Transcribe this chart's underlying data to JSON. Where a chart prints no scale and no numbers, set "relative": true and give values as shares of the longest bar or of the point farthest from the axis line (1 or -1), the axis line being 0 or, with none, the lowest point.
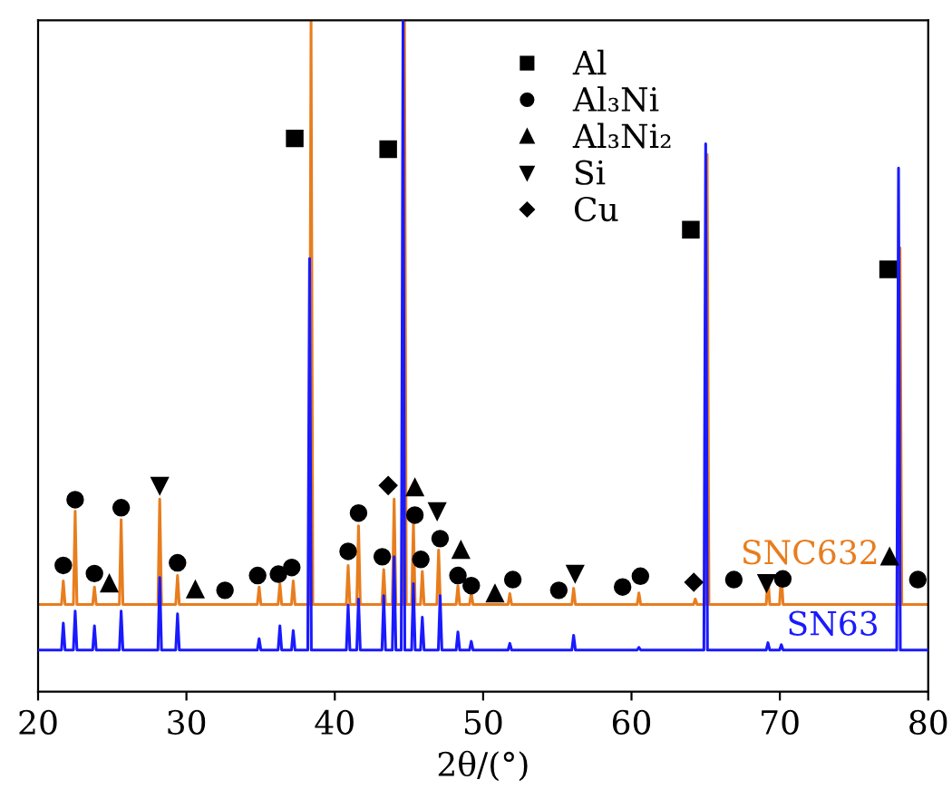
{
  "chart_data": {
    "type": "line",
    "relative": true,
    "xlabel": "2θ/(°)",
    "xlim": [
      20,
      80
    ],
    "xticks": [
      20,
      30,
      40,
      50,
      60,
      70,
      80
    ],
    "grid": false,
    "legend": "top",
    "tick_labels": "x",
    "series": [
      {
        "name": "SNC632",
        "color": "#e87d1e",
        "marker": "none",
        "line_style": "solid",
        "x": [
          20,
          21.58,
          21.7,
          21.82,
          22.38,
          22.5,
          22.62,
          23.68,
          23.8,
          23.92,
          25.48,
          25.6,
          25.72,
          28.08,
          28.2,
          28.32,
          29.28,
          29.4,
          29.52,
          34.78,
          34.9,
          35.02,
          36.18,
          36.3,
          36.42,
          37.08,
          37.2,
          37.32,
          38.28,
          38.4,
          38.52,
          40.78,
          40.9,
          41.02,
          41.48,
          41.6,
          41.72,
          43.18,
          43.3,
          43.42,
          43.88,
          44.0,
          44.12,
          44.58,
          44.7,
          44.82,
          45.18,
          45.3,
          45.42,
          45.78,
          45.9,
          46.02,
          46.88,
          47.0,
          47.12,
          48.18,
          48.3,
          48.42,
          49.08,
          49.2,
          49.32,
          51.68,
          51.8,
          51.92,
          55.98,
          56.1,
          56.22,
          60.38,
          60.5,
          60.62,
          64.18,
          64.3,
          64.42,
          64.98,
          65.1,
          65.22,
          69.08,
          69.2,
          69.32,
          69.98,
          70.1,
          70.22,
          77.98,
          78.1,
          78.22,
          80
        ],
        "values": [
          0.13,
          0.13,
          0.165,
          0.13,
          0.13,
          0.269,
          0.13,
          0.13,
          0.156,
          0.13,
          0.13,
          0.256,
          0.13,
          0.13,
          0.287,
          0.13,
          0.13,
          0.173,
          0.13,
          0.13,
          0.156,
          0.13,
          0.13,
          0.161,
          0.13,
          0.13,
          0.165,
          0.13,
          0.13,
          1.0,
          0.13,
          0.13,
          0.188,
          0.13,
          0.13,
          0.247,
          0.13,
          0.13,
          0.182,
          0.13,
          0.13,
          0.287,
          0.13,
          0.13,
          1.0,
          0.13,
          0.13,
          0.251,
          0.13,
          0.13,
          0.179,
          0.13,
          0.13,
          0.211,
          0.13,
          0.13,
          0.158,
          0.13,
          0.13,
          0.147,
          0.13,
          0.13,
          0.146,
          0.13,
          0.13,
          0.154,
          0.13,
          0.13,
          0.147,
          0.13,
          0.13,
          0.138,
          0.13,
          0.13,
          0.8,
          0.13,
          0.13,
          0.171,
          0.13,
          0.13,
          0.174,
          0.13,
          0.13,
          0.661,
          0.13,
          0.13
        ]
      },
      {
        "name": "SN63",
        "color": "#1a1aff",
        "marker": "none",
        "line_style": "solid",
        "x": [
          20,
          21.58,
          21.7,
          21.82,
          22.38,
          22.5,
          22.62,
          23.68,
          23.8,
          23.92,
          25.48,
          25.6,
          25.72,
          28.08,
          28.2,
          28.32,
          29.28,
          29.4,
          29.52,
          34.78,
          34.9,
          35.02,
          36.18,
          36.3,
          36.42,
          37.08,
          37.2,
          37.32,
          38.18,
          38.3,
          38.42,
          40.78,
          40.9,
          41.02,
          41.48,
          41.6,
          41.72,
          43.18,
          43.3,
          43.42,
          43.88,
          44.0,
          44.12,
          44.48,
          44.6,
          44.72,
          45.18,
          45.3,
          45.42,
          45.78,
          45.9,
          46.02,
          46.98,
          47.1,
          47.22,
          48.18,
          48.3,
          48.42,
          49.08,
          49.2,
          49.32,
          51.68,
          51.8,
          51.92,
          55.98,
          56.1,
          56.22,
          60.38,
          60.5,
          60.62,
          64.88,
          65.0,
          65.12,
          69.08,
          69.2,
          69.32,
          69.98,
          70.1,
          70.22,
          77.88,
          78.0,
          78.12,
          80
        ],
        "values": [
          0.062,
          0.062,
          0.102,
          0.062,
          0.062,
          0.12,
          0.062,
          0.062,
          0.098,
          0.062,
          0.062,
          0.12,
          0.062,
          0.062,
          0.17,
          0.062,
          0.062,
          0.116,
          0.062,
          0.062,
          0.079,
          0.062,
          0.062,
          0.098,
          0.062,
          0.062,
          0.091,
          0.062,
          0.062,
          0.645,
          0.062,
          0.062,
          0.129,
          0.062,
          0.062,
          0.138,
          0.062,
          0.062,
          0.143,
          0.062,
          0.062,
          0.201,
          0.062,
          0.062,
          1.0,
          0.062,
          0.062,
          0.161,
          0.062,
          0.062,
          0.111,
          0.062,
          0.062,
          0.143,
          0.062,
          0.062,
          0.089,
          0.062,
          0.062,
          0.075,
          0.062,
          0.062,
          0.072,
          0.062,
          0.062,
          0.084,
          0.062,
          0.062,
          0.066,
          0.062,
          0.062,
          0.816,
          0.062,
          0.062,
          0.073,
          0.062,
          0.062,
          0.07,
          0.062,
          0.062,
          0.78,
          0.062,
          0.062
        ]
      },
      {
        "name": "Al",
        "type": "scatter",
        "color": "#000000",
        "marker": "square",
        "x": [
          37.3,
          43.6,
          64.0,
          77.3
        ],
        "values": [
          0.824,
          0.808,
          0.688,
          0.629
        ]
      },
      {
        "name": "Al₃Ni",
        "type": "scatter",
        "color": "#000000",
        "marker": "circle",
        "x": [
          21.7,
          22.5,
          23.8,
          25.6,
          29.4,
          32.6,
          34.8,
          36.2,
          37.1,
          40.9,
          41.6,
          43.2,
          45.4,
          45.8,
          47.1,
          48.3,
          49.2,
          52.0,
          55.1,
          59.4,
          60.6,
          66.9,
          70.2,
          79.3
        ],
        "values": [
          0.188,
          0.286,
          0.176,
          0.274,
          0.192,
          0.151,
          0.173,
          0.175,
          0.185,
          0.209,
          0.266,
          0.201,
          0.263,
          0.197,
          0.228,
          0.173,
          0.158,
          0.167,
          0.151,
          0.156,
          0.172,
          0.167,
          0.168,
          0.167
        ]
      },
      {
        "name": "Al₃Ni₂",
        "type": "scatter",
        "color": "#000000",
        "marker": "triangle",
        "x": [
          24.8,
          30.6,
          45.4,
          48.5,
          50.8,
          77.4
        ],
        "values": [
          0.161,
          0.152,
          0.304,
          0.211,
          0.146,
          0.201
        ]
      },
      {
        "name": "Si",
        "type": "scatter",
        "color": "#000000",
        "marker": "triangle_down",
        "x": [
          28.2,
          46.9,
          56.2,
          69.1
        ],
        "values": [
          0.307,
          0.269,
          0.176,
          0.162
        ]
      },
      {
        "name": "Cu",
        "type": "scatter",
        "color": "#000000",
        "marker": "diamond",
        "x": [
          43.6,
          64.2
        ],
        "values": [
          0.307,
          0.163
        ]
      }
    ]
  }
}
